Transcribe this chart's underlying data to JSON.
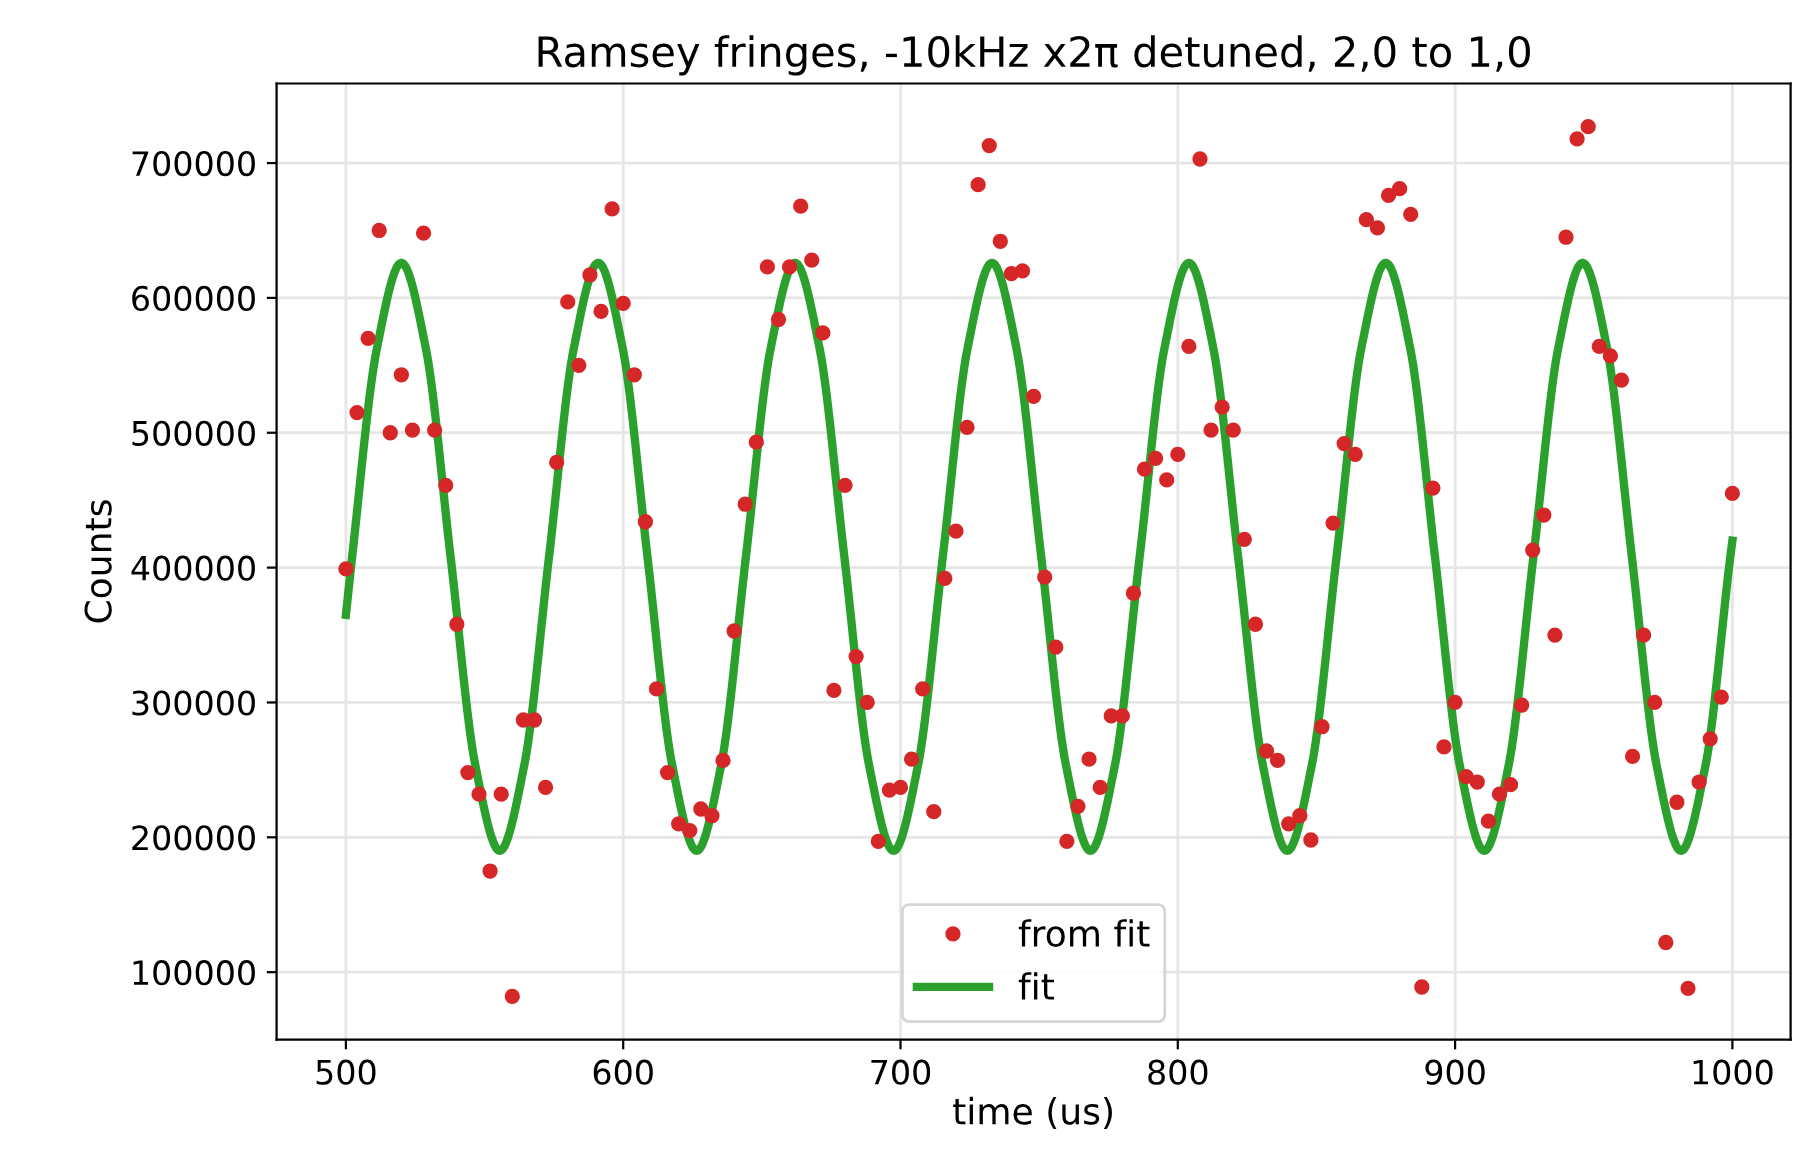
{
  "chart_data": {
    "type": "scatter",
    "title": "Ramsey fringes, -10kHz x2π detuned, 2,0 to 1,0",
    "xlabel": "time (us)",
    "ylabel": "Counts",
    "xlim": [
      475,
      1021
    ],
    "ylim": [
      50000,
      759000
    ],
    "xticks": [
      500,
      600,
      700,
      800,
      900,
      1000
    ],
    "yticks": [
      100000,
      200000,
      300000,
      400000,
      500000,
      600000,
      700000
    ],
    "grid": true,
    "legend": "bottom",
    "series": [
      {
        "name": "from fit",
        "marker": "circle",
        "color": "#d62728",
        "x": [
          500,
          504,
          508,
          512,
          516,
          520,
          524,
          528,
          532,
          536,
          540,
          544,
          548,
          552,
          556,
          560,
          564,
          568,
          572,
          576,
          580,
          584,
          588,
          592,
          596,
          600,
          604,
          608,
          612,
          616,
          620,
          624,
          628,
          632,
          636,
          640,
          644,
          648,
          652,
          656,
          660,
          664,
          668,
          672,
          676,
          680,
          684,
          688,
          692,
          696,
          700,
          704,
          708,
          712,
          716,
          720,
          724,
          728,
          732,
          736,
          740,
          744,
          748,
          752,
          756,
          760,
          764,
          768,
          772,
          776,
          780,
          784,
          788,
          792,
          796,
          800,
          804,
          808,
          812,
          816,
          820,
          824,
          828,
          832,
          836,
          840,
          844,
          848,
          852,
          856,
          860,
          864,
          868,
          872,
          876,
          880,
          884,
          888,
          892,
          896,
          900,
          904,
          908,
          912,
          916,
          920,
          924,
          928,
          932,
          936,
          940,
          944,
          948,
          952,
          956,
          960,
          964,
          968,
          972,
          976,
          980,
          984,
          988,
          992,
          996,
          1000
        ],
        "values": [
          399000,
          515000,
          570000,
          650000,
          500000,
          543000,
          502000,
          648000,
          502000,
          461000,
          358000,
          248000,
          232000,
          175000,
          232000,
          82000,
          287000,
          287000,
          237000,
          478000,
          597000,
          550000,
          617000,
          590000,
          666000,
          596000,
          543000,
          434000,
          310000,
          248000,
          210000,
          205000,
          221000,
          216000,
          257000,
          353000,
          447000,
          493000,
          623000,
          584000,
          623000,
          668000,
          628000,
          574000,
          309000,
          461000,
          334000,
          300000,
          197000,
          235000,
          237000,
          258000,
          310000,
          219000,
          392000,
          427000,
          504000,
          684000,
          713000,
          642000,
          618000,
          620000,
          527000,
          393000,
          341000,
          197000,
          223000,
          258000,
          237000,
          290000,
          290000,
          381000,
          473000,
          481000,
          465000,
          484000,
          564000,
          703000,
          502000,
          519000,
          502000,
          421000,
          358000,
          264000,
          257000,
          210000,
          216000,
          198000,
          282000,
          433000,
          492000,
          484000,
          658000,
          652000,
          676000,
          681000,
          662000,
          89000,
          459000,
          267000,
          300000,
          245000,
          241000,
          212000,
          232000,
          239000,
          298000,
          413000,
          439000,
          350000,
          645000,
          718000,
          727000,
          564000,
          557000,
          539000,
          260000,
          350000,
          300000,
          122000,
          226000,
          88000,
          241000,
          273000,
          304000,
          455000
        ]
      },
      {
        "name": "fit",
        "type": "line",
        "line_style": "solid",
        "color": "#2ca02c",
        "x": [
          500,
          502.25,
          511.125,
          520,
          528.875,
          537.75,
          546.625,
          555.5,
          564.375,
          573.25,
          582.125,
          591,
          599.875,
          608.75,
          617.625,
          626.5,
          635.375,
          644.25,
          653.125,
          662,
          670.875,
          679.75,
          688.625,
          697.5,
          706.375,
          715.25,
          724.125,
          733,
          741.875,
          750.75,
          759.625,
          768.5,
          777.375,
          786.25,
          795.125,
          804,
          812.875,
          821.75,
          830.625,
          839.5,
          848.375,
          857.25,
          866.125,
          875,
          883.875,
          892.75,
          901.625,
          910.5,
          919.375,
          928.25,
          937.125,
          946,
          954.875,
          963.75,
          972.625,
          981.5,
          990.375,
          999.25,
          1000
        ],
        "values": [
          365000,
          408000,
          562000,
          626000,
          562000,
          408000,
          254000,
          190000,
          254000,
          408000,
          562000,
          626000,
          562000,
          408000,
          254000,
          190000,
          254000,
          408000,
          562000,
          626000,
          562000,
          408000,
          254000,
          190000,
          254000,
          408000,
          562000,
          626000,
          562000,
          408000,
          254000,
          190000,
          254000,
          408000,
          562000,
          626000,
          562000,
          408000,
          254000,
          190000,
          254000,
          408000,
          562000,
          626000,
          562000,
          408000,
          254000,
          190000,
          254000,
          408000,
          562000,
          626000,
          562000,
          408000,
          254000,
          190000,
          254000,
          408000,
          420000
        ]
      }
    ]
  }
}
